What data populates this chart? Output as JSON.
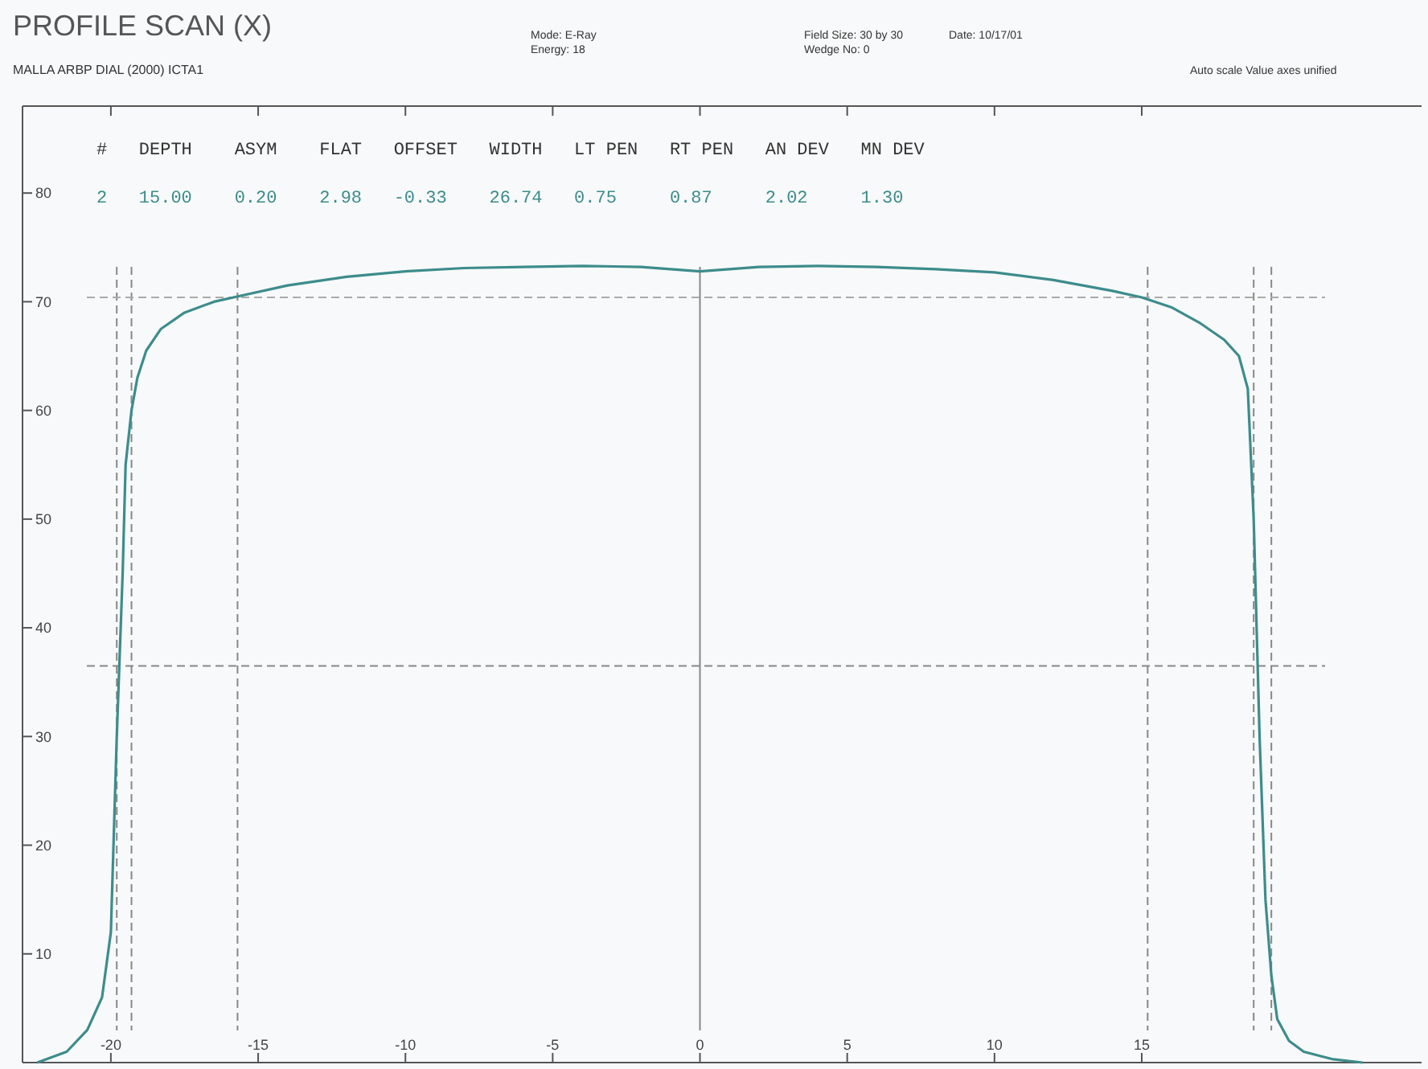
{
  "chart_data": {
    "type": "line",
    "title": "PROFILE SCAN (X)",
    "subtitle": "MALLA ARBP DIAL (2000) ICTA1",
    "annotations": [
      "Mode: E-Ray",
      "Energy: 18",
      "Field Size: 30 by 30",
      "Wedge No: 0",
      "Date: 10/17/01",
      "Auto scale Value axes unified",
      "#   DEPTH    ASYM    FLAT   OFFSET   WIDTH   LT PEN   RT PEN   AN DEV   MN DEV",
      "2   15.00    0.20    2.98   -0.33    26.74   0.75     0.87     2.02     1.30"
    ],
    "series": [
      {
        "color": "#3d8c8c",
        "x": [
          -22.5,
          -21.5,
          -20.8,
          -20.3,
          -20,
          -19.8,
          -19.6,
          -19.5,
          -19.3,
          -19.1,
          -18.8,
          -18.3,
          -17.5,
          -16.5,
          -15.5,
          -14,
          -12,
          -10,
          -8,
          -6,
          -4,
          -2,
          -1,
          0,
          1,
          2,
          4,
          6,
          8,
          10,
          12,
          13,
          14,
          15,
          16,
          17,
          17.8,
          18.3,
          18.6,
          18.8,
          19,
          19.2,
          19.4,
          19.6,
          20,
          20.5,
          21.5,
          22.5
        ],
        "values": [
          0,
          1,
          3,
          6,
          12,
          30,
          45,
          55,
          60,
          63,
          65.5,
          67.5,
          69,
          70,
          70.6,
          71.5,
          72.3,
          72.8,
          73.1,
          73.2,
          73.3,
          73.2,
          73,
          72.8,
          73,
          73.2,
          73.3,
          73.2,
          73,
          72.7,
          72,
          71.5,
          71,
          70.4,
          69.5,
          68,
          66.5,
          65,
          62,
          50,
          30,
          15,
          8,
          4,
          2,
          1,
          0.3,
          0
        ]
      }
    ],
    "xlim": [
      -23,
      24.5
    ],
    "xticks": [
      -20,
      -15,
      -10,
      -5,
      0,
      5,
      10,
      15
    ],
    "ylim": [
      0,
      88
    ],
    "yticks": [
      {
        "value": 0,
        "label": null
      },
      10,
      20,
      30,
      40,
      50,
      60,
      70,
      80
    ],
    "grid": false,
    "marker": "none",
    "line_style": "solid",
    "ref_lines": [
      {
        "axis": "x",
        "value": -19.8,
        "line_style": "dashed",
        "color": "#888888"
      },
      {
        "axis": "x",
        "value": -19.3,
        "line_style": "dashed",
        "color": "#888888"
      },
      {
        "axis": "x",
        "value": -15.7,
        "line_style": "dashed",
        "color": "#888888"
      },
      {
        "axis": "x",
        "value": 0,
        "line_style": "solid",
        "color": "#888888"
      },
      {
        "axis": "x",
        "value": 15.2,
        "line_style": "dashed",
        "color": "#888888"
      },
      {
        "axis": "x",
        "value": 18.8,
        "line_style": "dashed",
        "color": "#888888"
      },
      {
        "axis": "x",
        "value": 19.4,
        "line_style": "dashed",
        "color": "#888888"
      },
      {
        "axis": "y",
        "value": 36.5,
        "line_style": "dashed",
        "color": "#888888"
      },
      {
        "axis": "y",
        "value": 70.4,
        "line_style": "dashed",
        "color": "#aaaaaa"
      }
    ]
  }
}
